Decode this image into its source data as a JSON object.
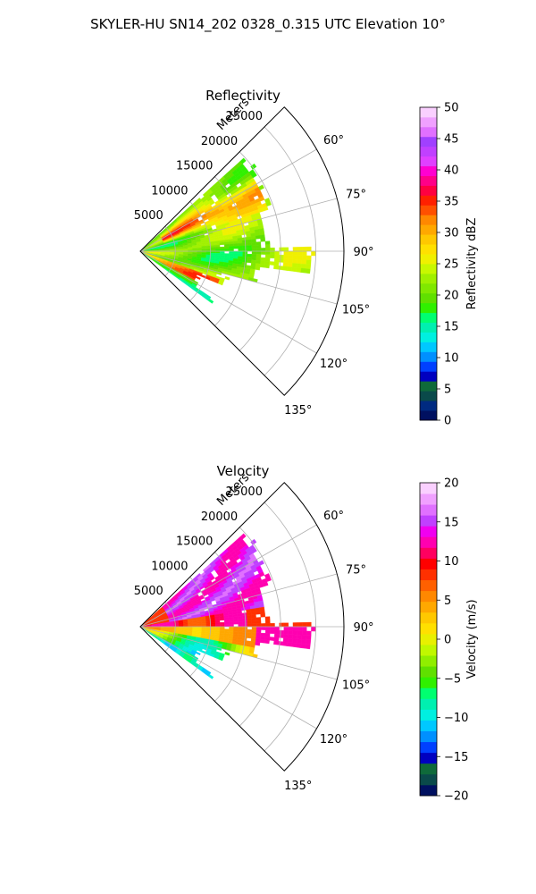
{
  "figure": {
    "suptitle": "SKYLER-HU  SN14_202  0328_0.315 UTC Elevation 10°"
  },
  "chart_data": [
    {
      "type": "heatmap",
      "title": "Reflectivity",
      "radial_label": "Meters",
      "radial_ticks": [
        "5000",
        "10000",
        "15000",
        "20000",
        "25000"
      ],
      "radial_values": [
        5000,
        10000,
        15000,
        20000,
        25000
      ],
      "angle_ticks": [
        "60°",
        "75°",
        "90°",
        "105°",
        "120°",
        "135°"
      ],
      "angle_values": [
        60,
        75,
        90,
        105,
        120,
        135
      ],
      "azimuth_range": [
        45,
        135
      ],
      "range_max": 29000,
      "grid": true,
      "colorbar": {
        "label": "Reflectivity dBZ",
        "min": 0,
        "max": 50,
        "ticks": [
          "0",
          "5",
          "10",
          "15",
          "20",
          "25",
          "30",
          "35",
          "40",
          "45",
          "50"
        ],
        "tick_values": [
          0,
          5,
          10,
          15,
          20,
          25,
          30,
          35,
          40,
          45,
          50
        ],
        "colors": [
          "#001060",
          "#002a80",
          "#0a4a4a",
          "#0f6a3a",
          "#0000c0",
          "#0040ff",
          "#0090ff",
          "#00c8ff",
          "#00f0e0",
          "#00f0b0",
          "#00ff70",
          "#30f000",
          "#60e000",
          "#80e800",
          "#a0f000",
          "#c8f800",
          "#f0f000",
          "#ffe000",
          "#ffc800",
          "#ffa800",
          "#ff8800",
          "#ff5000",
          "#ff2000",
          "#ff0040",
          "#ff0088",
          "#ff00d0",
          "#e040ff",
          "#c040ff",
          "#a040ff",
          "#e070ff",
          "#f0a0ff",
          "#fad0ff"
        ]
      }
    },
    {
      "type": "heatmap",
      "title": "Velocity",
      "radial_label": "Meters",
      "radial_ticks": [
        "5000",
        "10000",
        "15000",
        "20000",
        "25000"
      ],
      "radial_values": [
        5000,
        10000,
        15000,
        20000,
        25000
      ],
      "angle_ticks": [
        "60°",
        "75°",
        "90°",
        "105°",
        "120°",
        "135°"
      ],
      "angle_values": [
        60,
        75,
        90,
        105,
        120,
        135
      ],
      "azimuth_range": [
        45,
        135
      ],
      "range_max": 29000,
      "grid": true,
      "colorbar": {
        "label": "Velocity (m/s)",
        "min": -20,
        "max": 20,
        "ticks": [
          "−20",
          "−15",
          "−10",
          "−5",
          "0",
          "5",
          "10",
          "15",
          "20"
        ],
        "tick_values": [
          -20,
          -15,
          -10,
          -5,
          0,
          5,
          10,
          15,
          20
        ],
        "colors": [
          "#001060",
          "#0a4a4a",
          "#0f6a3a",
          "#0000c0",
          "#0040ff",
          "#0090ff",
          "#00c8ff",
          "#00f0e0",
          "#00f0b0",
          "#00ff70",
          "#30f000",
          "#60e000",
          "#90ee00",
          "#c0f800",
          "#e8f000",
          "#ffe000",
          "#ffc800",
          "#ffa800",
          "#ff8800",
          "#ff6000",
          "#ff3000",
          "#ff0000",
          "#ff0060",
          "#ff00b0",
          "#f000f0",
          "#c040ff",
          "#e070ff",
          "#f0a0ff",
          "#fad0ff"
        ]
      }
    }
  ]
}
